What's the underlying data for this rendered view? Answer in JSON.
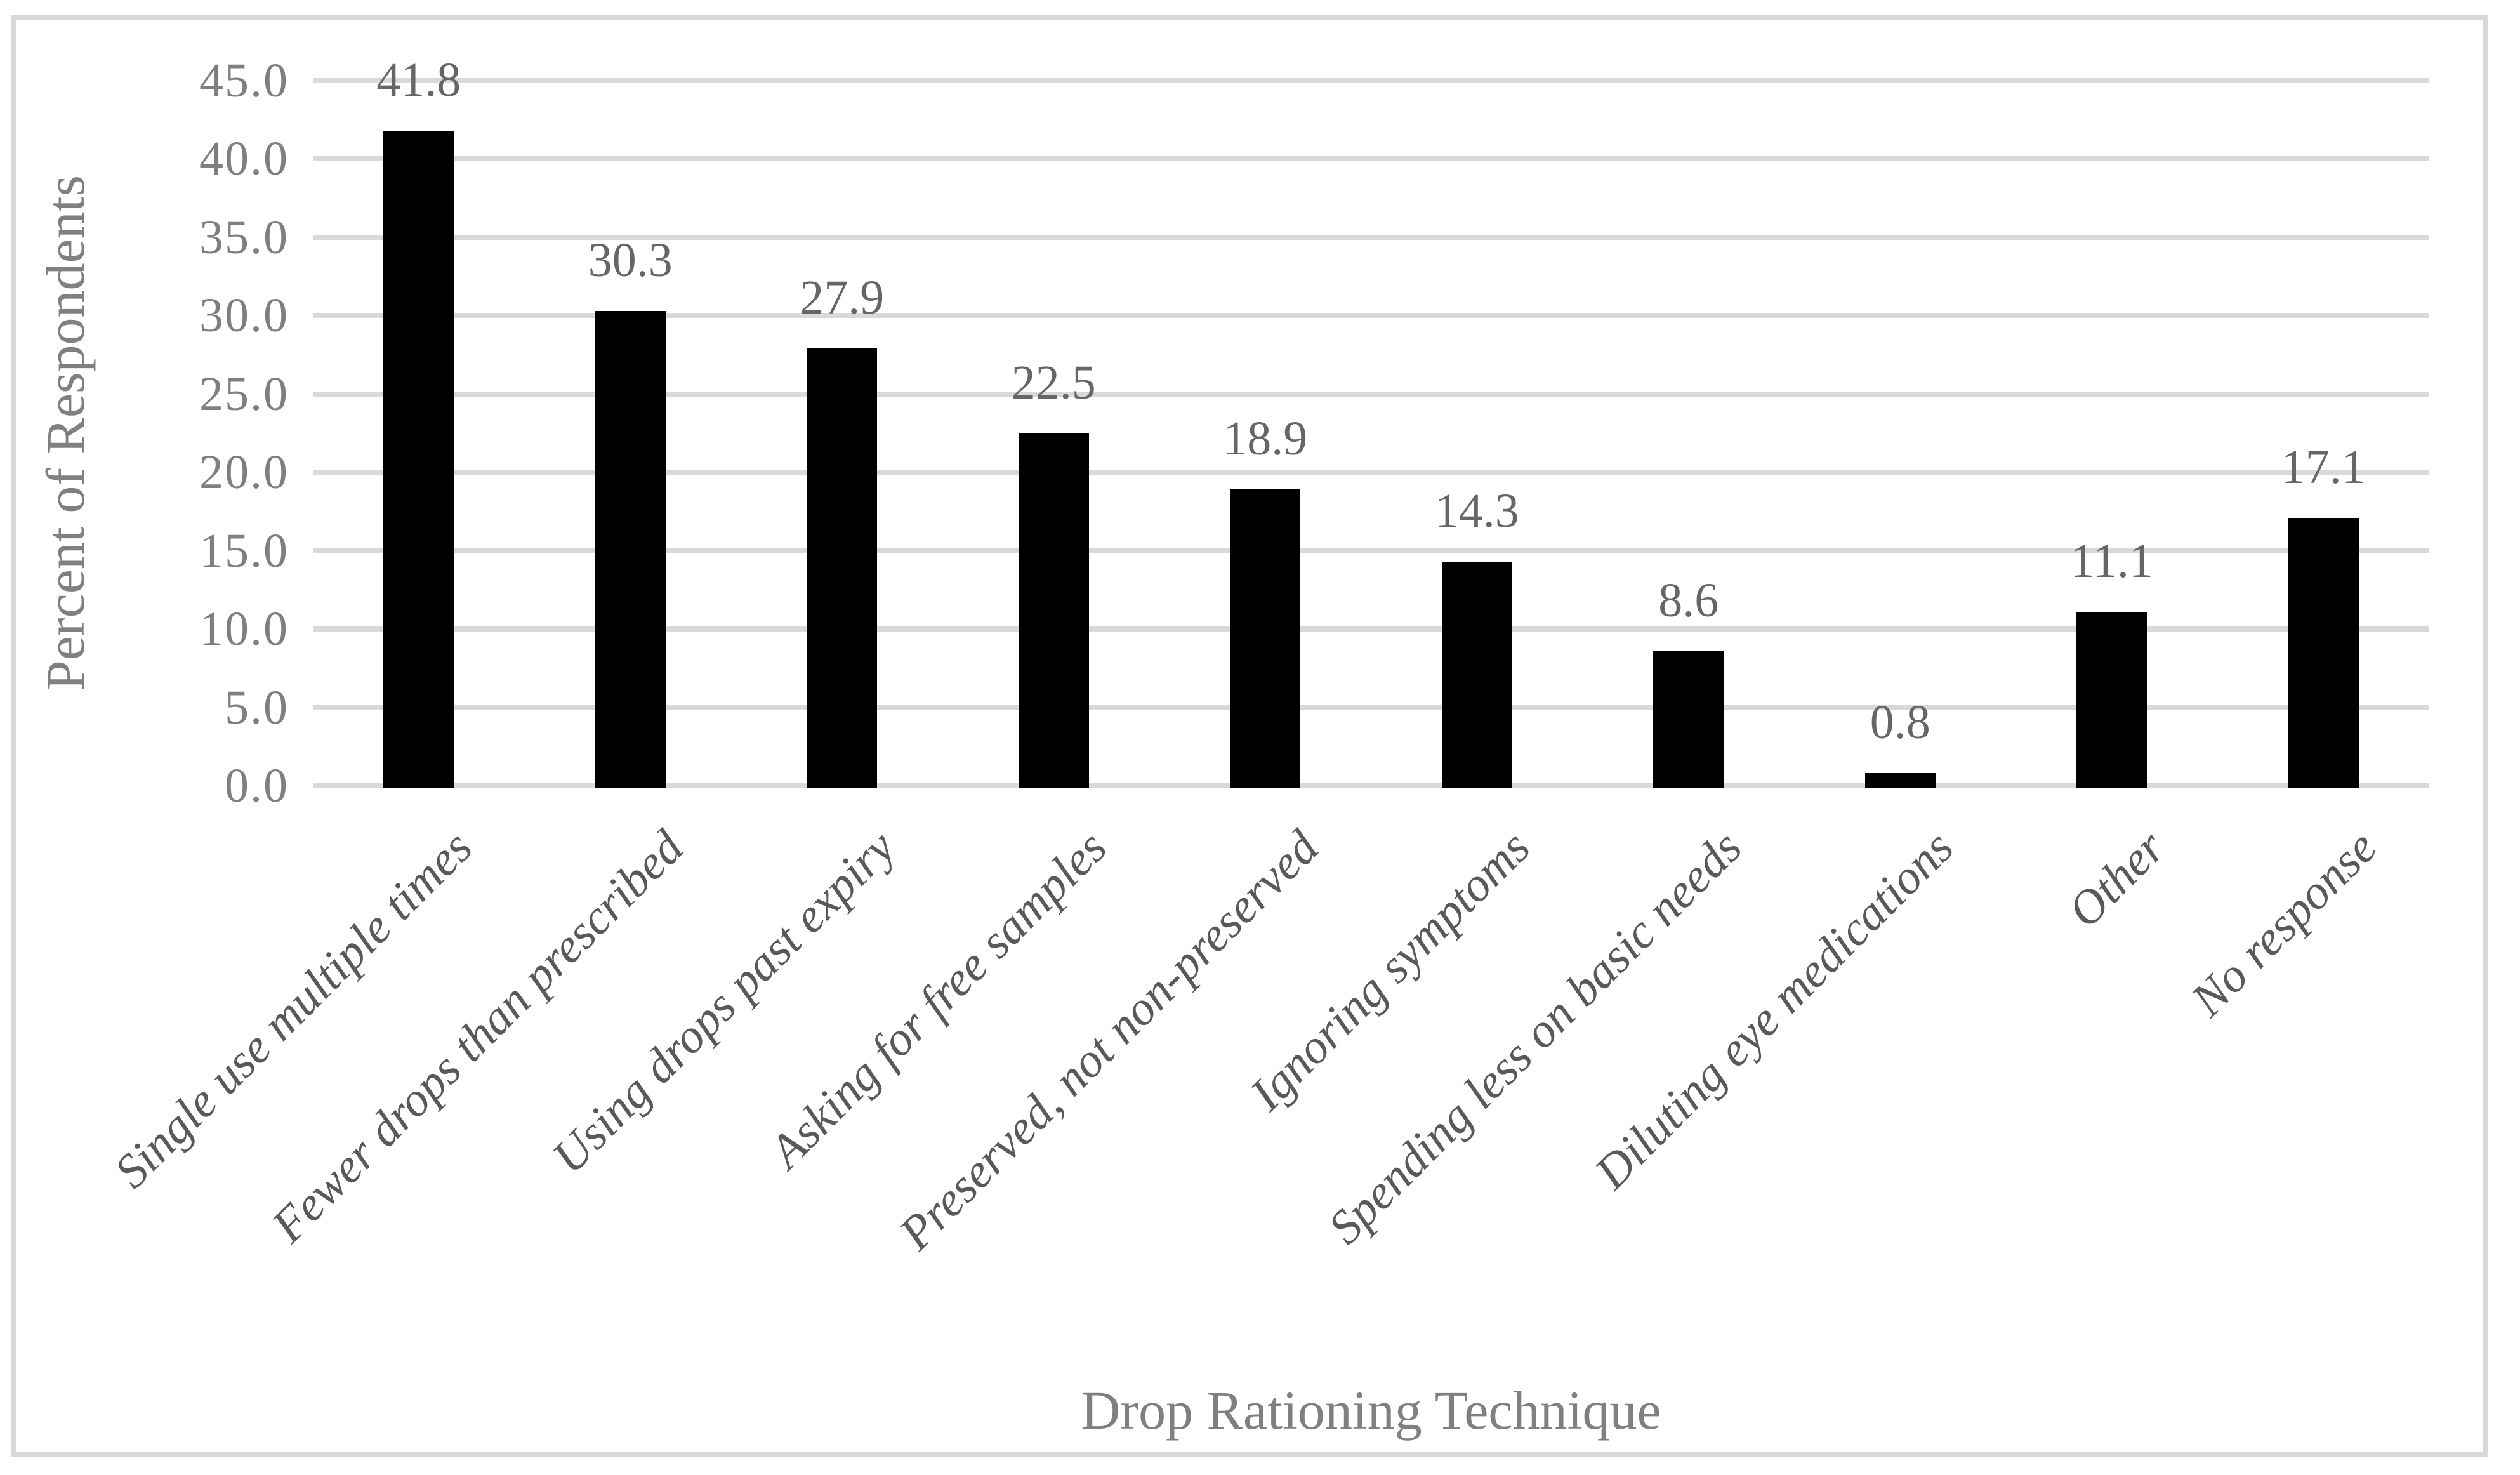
{
  "figure": {
    "background_color": "#ffffff",
    "frame_border_color": "#d9d9d9"
  },
  "chart_data": {
    "type": "bar",
    "title": "",
    "categories": [
      "Single use multiple times",
      "Fewer drops than prescribed",
      "Using drops past expiry",
      "Asking for free samples",
      "Preserved, not non-preserved",
      "Ignoring symptoms",
      "Spending less on basic needs",
      "Diluting eye medications",
      "Other",
      "No response"
    ],
    "values": [
      41.8,
      30.3,
      27.9,
      22.5,
      18.9,
      14.3,
      8.6,
      0.8,
      11.1,
      17.1
    ],
    "value_labels": [
      "41.8",
      "30.3",
      "27.9",
      "22.5",
      "18.9",
      "14.3",
      "8.6",
      "0.8",
      "11.1",
      "17.1"
    ],
    "xlabel": "Drop Rationing Technique",
    "ylabel": "Percent of Respondents",
    "ylim": [
      0,
      45
    ],
    "ytick_step": 5,
    "ytick_labels": [
      "0.0",
      "5.0",
      "10.0",
      "15.0",
      "20.0",
      "25.0",
      "30.0",
      "35.0",
      "40.0",
      "45.0"
    ],
    "grid": true,
    "legend_position": "none",
    "bar_color": "#000000",
    "gridline_color": "#d9d9d9",
    "tick_label_color": "#7f7f7f",
    "data_label_color": "#666666",
    "category_label_color": "#595959",
    "axis_title_color": "#808080"
  }
}
